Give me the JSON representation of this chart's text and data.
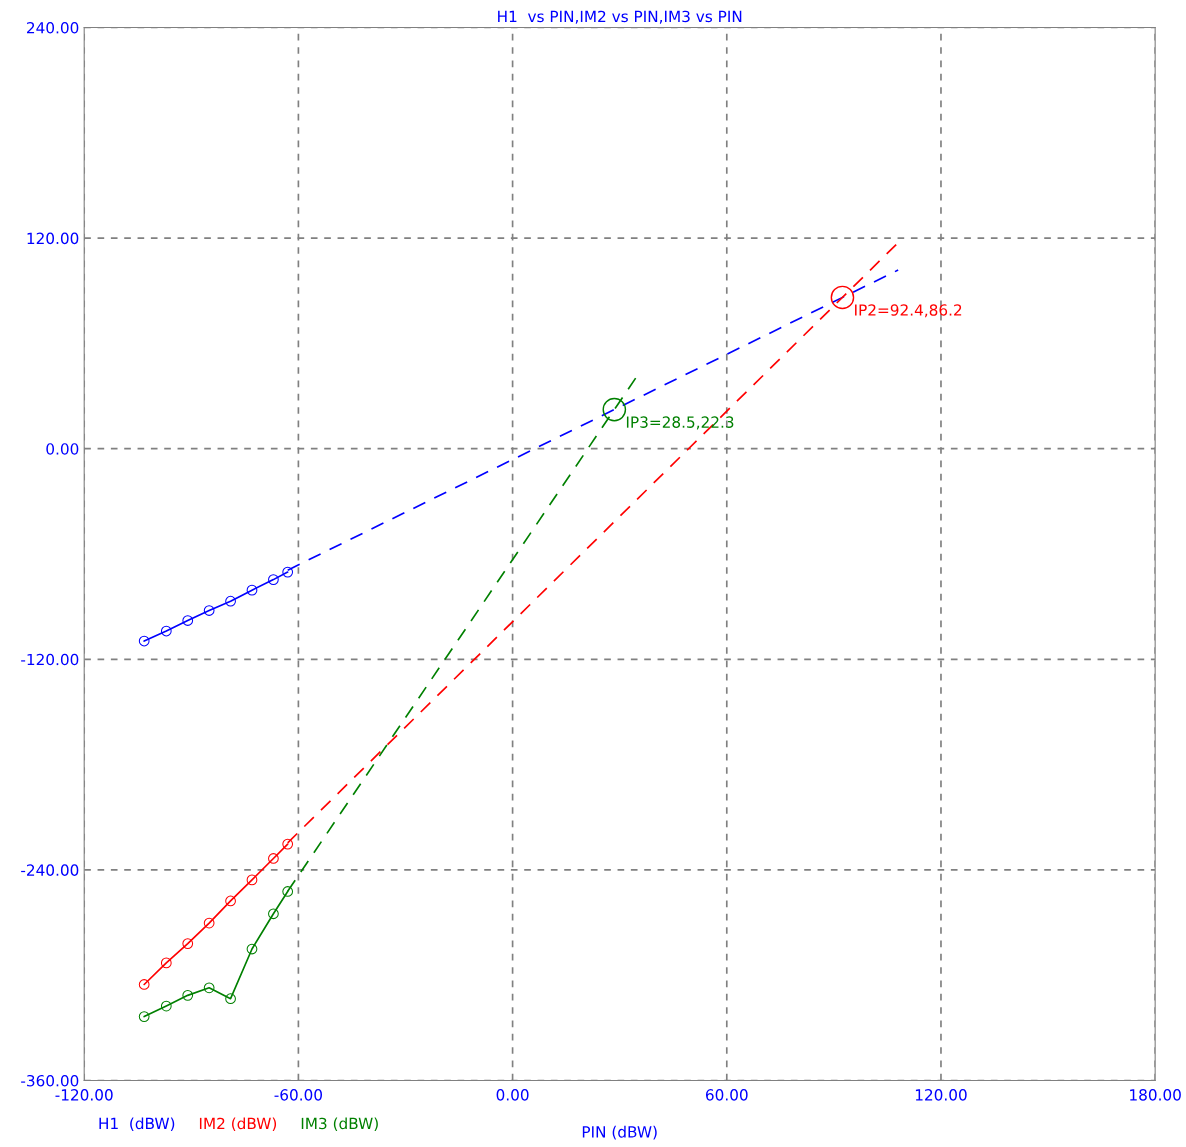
{
  "chart_data": {
    "type": "line",
    "title": "H1  vs PIN,IM2 vs PIN,IM3 vs PIN",
    "xlabel": "PIN (dBW)",
    "xlim": [
      -120,
      180
    ],
    "ylim": [
      -360,
      240
    ],
    "xticks": [
      {
        "value": -120,
        "label": "-120.00"
      },
      {
        "value": -60,
        "label": "-60.00"
      },
      {
        "value": 0,
        "label": "0.00"
      },
      {
        "value": 60,
        "label": "60.00"
      },
      {
        "value": 120,
        "label": "120.00"
      },
      {
        "value": 180,
        "label": "180.00"
      }
    ],
    "yticks": [
      {
        "value": -360,
        "label": "-360.00"
      },
      {
        "value": -240,
        "label": "-240.00"
      },
      {
        "value": -120,
        "label": "-120.00"
      },
      {
        "value": 0,
        "label": "0.00"
      },
      {
        "value": 120,
        "label": "120.00"
      },
      {
        "value": 240,
        "label": "240.00"
      }
    ],
    "grid": true,
    "legend": "bottom left",
    "x": [
      -103.2,
      -97,
      -91,
      -85,
      -79,
      -73,
      -67,
      -63
    ],
    "series": [
      {
        "name": "H1  (dBW)",
        "color": "#0000ff",
        "marker": "circle",
        "line_style": "solid",
        "values": [
          -109.6,
          -103.9,
          -97.9,
          -92.2,
          -86.9,
          -80.6,
          -74.6,
          -70.3
        ]
      },
      {
        "name": "IM2 (dBW)",
        "color": "#ff0000",
        "marker": "circle",
        "line_style": "solid",
        "values": [
          -305.3,
          -293.0,
          -282.0,
          -270.3,
          -257.7,
          -245.7,
          -233.5,
          -225.3
        ]
      },
      {
        "name": "IM3 (dBW)",
        "color": "#008000",
        "marker": "circle",
        "line_style": "solid",
        "values": [
          -323.6,
          -317.6,
          -311.5,
          -307.2,
          -313.4,
          -285.1,
          -265.0,
          -252.3
        ]
      },
      {
        "color": "#0000ff",
        "marker": "none",
        "line_style": "dashed",
        "x": [
          -63,
          108
        ],
        "values": [
          -69.2,
          101.8
        ]
      },
      {
        "color": "#ff0000",
        "marker": "none",
        "line_style": "dashed",
        "x": [
          -63,
          108
        ],
        "values": [
          -224.6,
          117.4
        ]
      },
      {
        "color": "#008000",
        "marker": "none",
        "line_style": "dashed",
        "x": [
          -63,
          35.2
        ],
        "values": [
          -252.2,
          42.4
        ]
      }
    ],
    "annotations": [
      {
        "text": "IP2=92.4,86.2",
        "x": 92.4,
        "y": 86.2
      },
      {
        "text": "IP3=28.5,22.3",
        "x": 28.5,
        "y": 22.3
      }
    ]
  }
}
